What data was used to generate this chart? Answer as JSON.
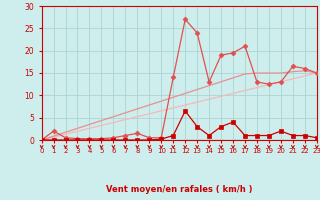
{
  "xlabel": "Vent moyen/en rafales ( km/h )",
  "xlim": [
    0,
    23
  ],
  "ylim": [
    0,
    30
  ],
  "yticks": [
    0,
    5,
    10,
    15,
    20,
    25,
    30
  ],
  "xticks": [
    0,
    1,
    2,
    3,
    4,
    5,
    6,
    7,
    8,
    9,
    10,
    11,
    12,
    13,
    14,
    15,
    16,
    17,
    18,
    19,
    20,
    21,
    22,
    23
  ],
  "bg_color": "#ceeeed",
  "grid_color": "#aad4d3",
  "line1_x": [
    0,
    1,
    2,
    3,
    4,
    5,
    6,
    7,
    8,
    9,
    10,
    11,
    12,
    13,
    14,
    15,
    16,
    17,
    18,
    19,
    20,
    21,
    22,
    23
  ],
  "line1_y": [
    0,
    0.65,
    1.3,
    1.96,
    2.61,
    3.26,
    3.91,
    4.57,
    5.22,
    5.87,
    6.52,
    7.17,
    7.83,
    8.48,
    9.13,
    9.78,
    10.43,
    11.09,
    11.74,
    12.39,
    13.04,
    13.7,
    14.35,
    15.0
  ],
  "line1_color": "#f5b8b8",
  "line1_lw": 0.9,
  "line2_x": [
    0,
    1,
    2,
    3,
    4,
    5,
    6,
    7,
    8,
    9,
    10,
    11,
    12,
    13,
    14,
    15,
    16,
    17,
    18,
    19,
    20,
    21,
    22,
    23
  ],
  "line2_y": [
    0,
    0.87,
    1.74,
    2.61,
    3.48,
    4.35,
    5.22,
    6.09,
    6.96,
    7.83,
    8.7,
    9.57,
    10.43,
    11.3,
    12.17,
    13.04,
    13.91,
    14.78,
    15.0,
    15.0,
    15.0,
    15.3,
    15.5,
    15.0
  ],
  "line2_color": "#e89090",
  "line2_lw": 0.9,
  "line3_x": [
    0,
    1,
    2,
    3,
    4,
    5,
    6,
    7,
    8,
    9,
    10,
    11,
    12,
    13,
    14,
    15,
    16,
    17,
    18,
    19,
    20,
    21,
    22,
    23
  ],
  "line3_y": [
    0,
    2.0,
    0.5,
    0.3,
    0.3,
    0.3,
    0.5,
    1.0,
    1.5,
    0.5,
    0.5,
    14.0,
    27.0,
    24.0,
    13.0,
    19.0,
    19.5,
    21.0,
    13.0,
    12.5,
    13.0,
    16.5,
    16.0,
    15.0
  ],
  "line3_color": "#e05050",
  "line3_lw": 0.9,
  "line3_marker": "D",
  "line4_x": [
    0,
    1,
    2,
    3,
    4,
    5,
    6,
    7,
    8,
    9,
    10,
    11,
    12,
    13,
    14,
    15,
    16,
    17,
    18,
    19,
    20,
    21,
    22,
    23
  ],
  "line4_y": [
    0,
    0,
    0,
    0,
    0,
    0,
    0,
    0,
    0,
    0,
    0.2,
    1.0,
    6.5,
    3.0,
    1.0,
    3.0,
    4.0,
    1.0,
    1.0,
    1.0,
    2.0,
    1.0,
    1.0,
    0.5
  ],
  "line4_color": "#cc0000",
  "line4_lw": 0.9,
  "line4_marker": "s",
  "arrow_color": "#cc0000",
  "axis_color": "#cc0000",
  "tick_color": "#cc0000",
  "label_color": "#cc0000"
}
